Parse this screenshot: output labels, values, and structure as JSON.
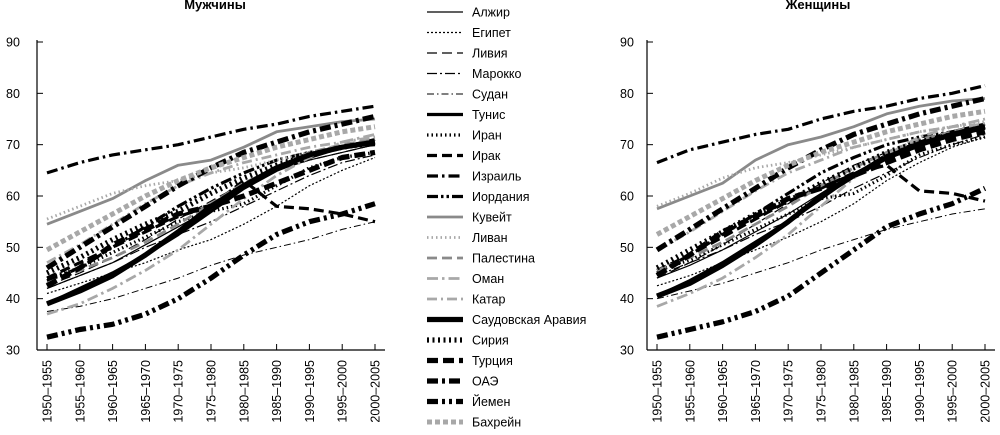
{
  "chart_data": [
    {
      "type": "line",
      "title": "Мужчины",
      "xlabel": "",
      "ylabel": "",
      "categories": [
        "1950–1955",
        "1955–1960",
        "1960–1965",
        "1965–1970",
        "1970–1975",
        "1975–1980",
        "1980–1985",
        "1985–1990",
        "1990–1995",
        "1995–2000",
        "2000–2005"
      ],
      "y_ticks": [
        "30",
        "40",
        "50",
        "60",
        "70",
        "80",
        "90"
      ],
      "ylim": [
        30,
        90
      ],
      "series": [
        {
          "name": "Алжир",
          "values": [
            42.0,
            44.5,
            47.0,
            50.5,
            54.0,
            57.5,
            61.5,
            65.0,
            67.0,
            68.5,
            70.0
          ]
        },
        {
          "name": "Египет",
          "values": [
            41.0,
            43.0,
            45.0,
            47.0,
            49.5,
            51.5,
            54.5,
            58.0,
            62.0,
            65.0,
            67.5
          ]
        },
        {
          "name": "Ливия",
          "values": [
            42.5,
            45.0,
            48.0,
            51.5,
            55.5,
            59.0,
            62.5,
            65.0,
            67.0,
            68.5,
            70.0
          ]
        },
        {
          "name": "Марокко",
          "values": [
            42.0,
            44.5,
            47.0,
            50.0,
            52.5,
            55.0,
            58.0,
            61.0,
            64.0,
            66.5,
            68.0
          ]
        },
        {
          "name": "Судан",
          "values": [
            37.5,
            38.5,
            40.0,
            42.0,
            44.0,
            46.5,
            48.5,
            50.0,
            51.5,
            53.5,
            55.0
          ]
        },
        {
          "name": "Тунис",
          "values": [
            39.0,
            42.0,
            45.0,
            48.5,
            52.5,
            57.0,
            61.5,
            65.0,
            67.5,
            69.5,
            71.0
          ]
        },
        {
          "name": "Иран",
          "values": [
            44.0,
            46.0,
            49.0,
            52.0,
            55.0,
            57.0,
            58.5,
            62.0,
            65.5,
            67.5,
            68.5
          ]
        },
        {
          "name": "Ирак",
          "values": [
            44.0,
            47.0,
            50.0,
            53.0,
            56.0,
            58.0,
            63.0,
            58.0,
            57.5,
            56.5,
            55.0
          ]
        },
        {
          "name": "Израиль",
          "values": [
            64.5,
            66.5,
            68.0,
            69.0,
            70.0,
            71.5,
            73.0,
            74.0,
            75.5,
            76.5,
            77.5
          ]
        },
        {
          "name": "Иордания",
          "values": [
            43.5,
            46.0,
            50.0,
            54.0,
            58.0,
            61.5,
            64.5,
            67.0,
            68.5,
            69.5,
            70.0
          ]
        },
        {
          "name": "Кувейт",
          "values": [
            54.5,
            57.0,
            59.5,
            63.0,
            66.0,
            67.0,
            69.5,
            72.5,
            73.5,
            74.5,
            75.0
          ]
        },
        {
          "name": "Ливан",
          "values": [
            55.5,
            58.0,
            60.5,
            62.0,
            63.0,
            64.5,
            65.5,
            67.0,
            68.5,
            69.5,
            70.5
          ]
        },
        {
          "name": "Палестина",
          "values": [
            43.0,
            45.5,
            48.0,
            51.0,
            54.5,
            58.5,
            62.5,
            65.5,
            68.5,
            70.0,
            71.0
          ]
        },
        {
          "name": "Оман",
          "values": [
            37.0,
            39.0,
            42.0,
            45.5,
            49.5,
            54.5,
            59.5,
            64.0,
            67.5,
            70.5,
            72.0
          ]
        },
        {
          "name": "Катар",
          "values": [
            47.0,
            50.5,
            54.5,
            58.5,
            62.0,
            64.5,
            66.5,
            68.0,
            69.5,
            70.5,
            71.5
          ]
        },
        {
          "name": "Саудовская Аравия",
          "values": [
            39.0,
            41.5,
            44.5,
            48.5,
            53.0,
            58.0,
            62.0,
            65.5,
            68.0,
            69.5,
            70.5
          ]
        },
        {
          "name": "Сирия",
          "values": [
            45.0,
            48.0,
            51.5,
            54.5,
            57.0,
            60.5,
            63.5,
            66.0,
            68.0,
            69.5,
            70.5
          ]
        },
        {
          "name": "Турция",
          "values": [
            42.5,
            46.0,
            50.5,
            53.5,
            56.5,
            58.0,
            60.0,
            62.5,
            65.0,
            67.5,
            68.5
          ]
        },
        {
          "name": "ОАЭ",
          "values": [
            46.0,
            50.0,
            54.0,
            58.0,
            62.0,
            65.5,
            68.5,
            70.5,
            72.5,
            74.0,
            75.5
          ]
        },
        {
          "name": "Йемен",
          "values": [
            32.5,
            34.0,
            35.0,
            37.0,
            40.0,
            44.0,
            48.5,
            52.5,
            55.0,
            56.5,
            58.5
          ]
        },
        {
          "name": "Бахрейн",
          "values": [
            49.5,
            53.0,
            56.5,
            60.0,
            63.0,
            65.5,
            67.5,
            69.5,
            71.0,
            72.5,
            73.5
          ]
        }
      ]
    },
    {
      "type": "line",
      "title": "Женщины",
      "xlabel": "",
      "ylabel": "",
      "categories": [
        "1950–1955",
        "1955–1960",
        "1960–1965",
        "1965–1970",
        "1970–1975",
        "1975–1980",
        "1980–1985",
        "1985–1990",
        "1990–1995",
        "1995–2000",
        "2000–2005"
      ],
      "y_ticks": [
        "30",
        "40",
        "50",
        "60",
        "70",
        "80",
        "90"
      ],
      "ylim": [
        30,
        90
      ],
      "series": [
        {
          "name": "Алжир",
          "values": [
            44.0,
            46.5,
            49.5,
            53.0,
            56.5,
            60.5,
            64.5,
            67.5,
            70.0,
            71.5,
            73.0
          ]
        },
        {
          "name": "Египет",
          "values": [
            42.5,
            44.5,
            47.0,
            49.5,
            52.0,
            55.0,
            58.5,
            63.0,
            66.5,
            69.5,
            71.5
          ]
        },
        {
          "name": "Ливия",
          "values": [
            44.0,
            47.0,
            50.5,
            54.5,
            58.5,
            62.5,
            66.0,
            68.5,
            70.5,
            72.0,
            74.0
          ]
        },
        {
          "name": "Марокко",
          "values": [
            44.5,
            47.0,
            49.5,
            52.5,
            55.0,
            58.0,
            61.5,
            64.5,
            67.5,
            70.0,
            72.0
          ]
        },
        {
          "name": "Судан",
          "values": [
            40.0,
            41.5,
            43.0,
            45.0,
            47.0,
            49.5,
            51.5,
            53.5,
            55.0,
            56.5,
            57.5
          ]
        },
        {
          "name": "Тунис",
          "values": [
            40.5,
            43.5,
            47.0,
            51.0,
            55.0,
            59.5,
            64.0,
            68.0,
            70.5,
            72.5,
            74.0
          ]
        },
        {
          "name": "Иран",
          "values": [
            45.5,
            47.5,
            50.5,
            53.5,
            56.5,
            59.5,
            60.5,
            64.0,
            68.0,
            70.0,
            71.5
          ]
        },
        {
          "name": "Ирак",
          "values": [
            45.5,
            48.5,
            52.0,
            55.5,
            59.0,
            61.5,
            64.5,
            66.0,
            61.0,
            60.5,
            59.0
          ]
        },
        {
          "name": "Израиль",
          "values": [
            66.5,
            69.0,
            70.5,
            72.0,
            73.0,
            75.0,
            76.5,
            77.5,
            79.0,
            80.0,
            81.5
          ]
        },
        {
          "name": "Иордания",
          "values": [
            45.0,
            48.5,
            52.5,
            56.5,
            60.5,
            64.5,
            67.5,
            70.0,
            71.5,
            72.5,
            73.5
          ]
        },
        {
          "name": "Кувейт",
          "values": [
            57.5,
            60.0,
            62.5,
            67.0,
            70.0,
            71.5,
            73.5,
            76.0,
            77.5,
            78.5,
            79.0
          ]
        },
        {
          "name": "Ливан",
          "values": [
            58.0,
            60.5,
            63.5,
            65.5,
            66.5,
            68.0,
            69.5,
            71.0,
            72.5,
            73.5,
            74.5
          ]
        },
        {
          "name": "Палестина",
          "values": [
            45.5,
            48.0,
            51.0,
            54.5,
            58.0,
            62.0,
            65.5,
            68.5,
            71.0,
            72.5,
            74.0
          ]
        },
        {
          "name": "Оман",
          "values": [
            38.5,
            41.0,
            44.0,
            48.0,
            52.5,
            58.0,
            63.5,
            68.0,
            71.5,
            73.5,
            75.0
          ]
        },
        {
          "name": "Катар",
          "values": [
            49.5,
            53.0,
            57.0,
            61.0,
            64.5,
            67.0,
            69.5,
            71.0,
            72.5,
            73.5,
            74.0
          ]
        },
        {
          "name": "Саудовская Аравия",
          "values": [
            40.5,
            43.0,
            46.5,
            50.5,
            55.0,
            60.0,
            64.0,
            67.5,
            70.0,
            72.0,
            73.5
          ]
        },
        {
          "name": "Сирия",
          "values": [
            46.0,
            49.5,
            53.0,
            56.5,
            59.0,
            62.5,
            65.5,
            68.5,
            70.5,
            72.0,
            73.5
          ]
        },
        {
          "name": "Турция",
          "values": [
            44.5,
            48.5,
            53.0,
            56.0,
            59.5,
            61.5,
            64.0,
            66.5,
            69.0,
            71.0,
            72.5
          ]
        },
        {
          "name": "ОАЭ",
          "values": [
            49.5,
            53.5,
            57.5,
            61.5,
            65.5,
            69.0,
            72.0,
            74.0,
            76.0,
            77.5,
            79.0
          ]
        },
        {
          "name": "Йемен",
          "values": [
            32.5,
            34.0,
            35.5,
            37.5,
            40.5,
            45.0,
            49.5,
            54.0,
            56.5,
            58.5,
            61.5
          ]
        },
        {
          "name": "Бахрейн",
          "values": [
            52.5,
            56.0,
            59.5,
            63.0,
            66.0,
            68.5,
            70.5,
            72.5,
            74.0,
            75.5,
            76.5
          ]
        }
      ]
    }
  ]
}
